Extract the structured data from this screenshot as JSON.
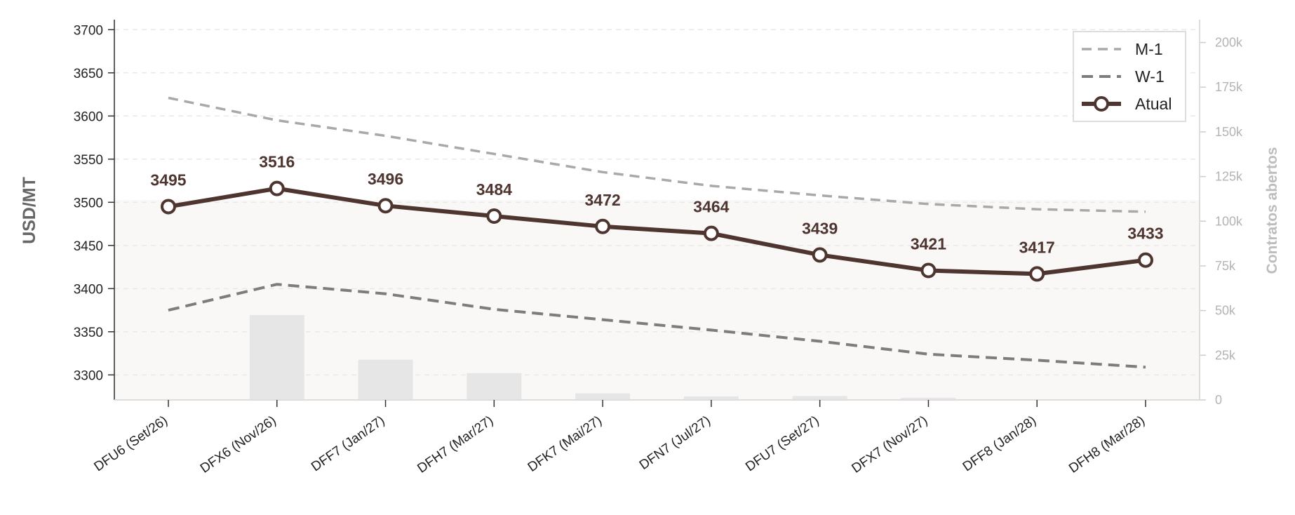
{
  "chart_data": {
    "type": "line",
    "categories": [
      "DFU6 (Set/26)",
      "DFX6 (Nov/26)",
      "DFF7 (Jan/27)",
      "DFH7 (Mar/27)",
      "DFK7 (Mai/27)",
      "DFN7 (Jul/27)",
      "DFU7 (Set/27)",
      "DFX7 (Nov/27)",
      "DFF8 (Jan/28)",
      "DFH8 (Mar/28)"
    ],
    "ylabel": "USD/MT",
    "y2label": "Contratos abertos",
    "ylim": [
      3271,
      3710
    ],
    "y2lim": [
      0,
      212000
    ],
    "yticks": [
      "3300",
      "3350",
      "3400",
      "3450",
      "3500",
      "3550",
      "3600",
      "3650",
      "3700"
    ],
    "y2ticks": [
      "0",
      "25k",
      "50k",
      "75k",
      "100k",
      "125k",
      "150k",
      "175k",
      "200k"
    ],
    "grid": true,
    "legend_position": "top-right",
    "series": [
      {
        "name": "M-1",
        "style": "dashed",
        "color": "#a9a9a9",
        "values": [
          3621,
          3595,
          3577,
          3556,
          3535,
          3519,
          3508,
          3498,
          3492,
          3489
        ]
      },
      {
        "name": "W-1",
        "style": "dashed",
        "color": "#7d7d7d",
        "values": [
          3375,
          3405,
          3394,
          3376,
          3364,
          3352,
          3339,
          3324,
          3317,
          3309
        ]
      },
      {
        "name": "Atual",
        "style": "solid-markers",
        "color": "#4e3530",
        "values": [
          3495,
          3516,
          3496,
          3484,
          3472,
          3464,
          3439,
          3421,
          3417,
          3433
        ]
      }
    ],
    "data_labels": [
      "3495",
      "3516",
      "3496",
      "3484",
      "3472",
      "3464",
      "3439",
      "3421",
      "3417",
      "3433"
    ],
    "open_interest": {
      "color": "#e6e6e6",
      "values": [
        0,
        47500,
        22500,
        15000,
        3700,
        2000,
        2200,
        1200,
        0,
        0
      ]
    }
  }
}
